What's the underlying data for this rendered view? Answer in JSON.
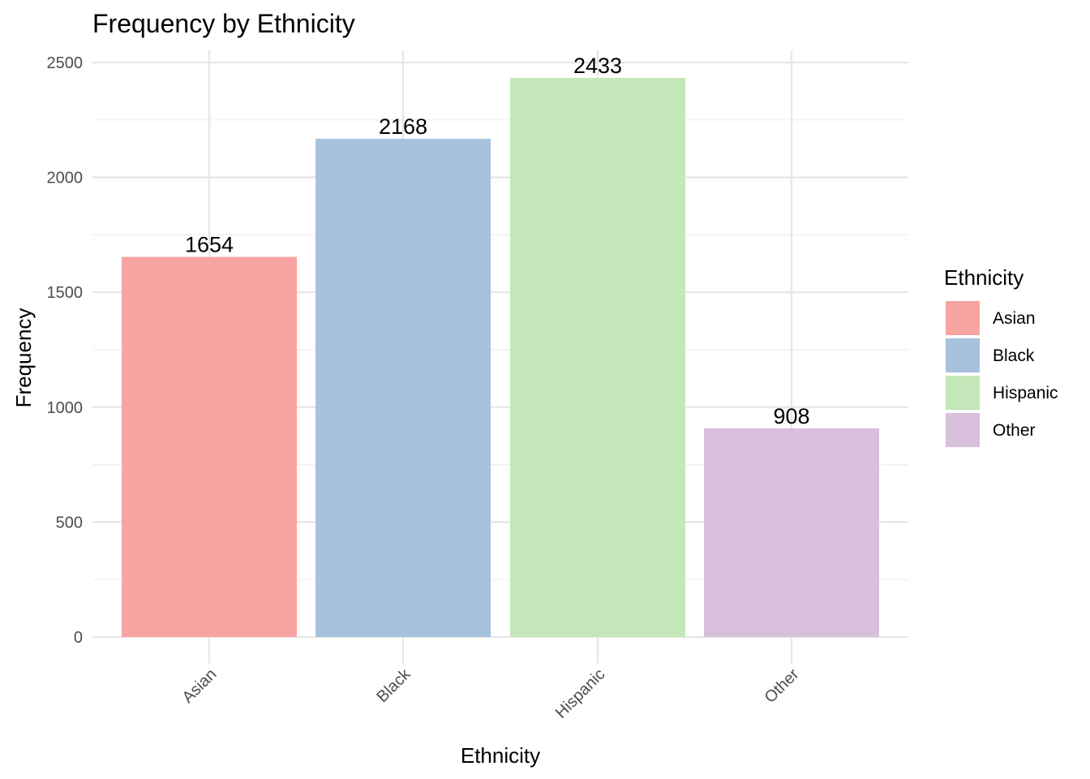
{
  "chart_data": {
    "type": "bar",
    "title": "Frequency by Ethnicity",
    "xlabel": "Ethnicity",
    "ylabel": "Frequency",
    "categories": [
      "Asian",
      "Black",
      "Hispanic",
      "Other"
    ],
    "values": [
      1654,
      2168,
      2433,
      908
    ],
    "value_labels": [
      "1654",
      "2168",
      "2433",
      "908"
    ],
    "colors": [
      "#F8A4A0",
      "#A8C2DD",
      "#C4E8B9",
      "#D8BFDC"
    ],
    "ylim": [
      0,
      2500
    ],
    "y_ticks": [
      0,
      500,
      1000,
      1500,
      2000,
      2500
    ],
    "y_tick_labels": [
      "0",
      "500",
      "1000",
      "1500",
      "2000",
      "2500"
    ],
    "x_tick_rotation_deg": 45,
    "grid": true,
    "legend": {
      "title": "Ethnicity",
      "position": "right",
      "entries": [
        "Asian",
        "Black",
        "Hispanic",
        "Other"
      ]
    }
  }
}
